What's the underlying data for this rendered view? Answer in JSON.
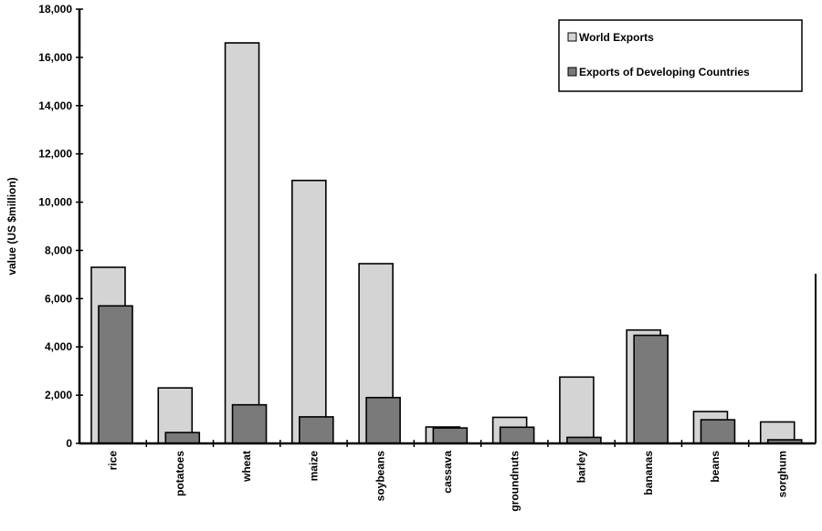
{
  "chart_data": {
    "type": "bar",
    "title": "",
    "xlabel": "",
    "ylabel": "value (US $million)",
    "ylim": [
      0,
      18000
    ],
    "yticks": [
      0,
      2000,
      4000,
      6000,
      8000,
      10000,
      12000,
      14000,
      16000,
      18000
    ],
    "ytick_labels": [
      "0",
      "2,000",
      "4,000",
      "6,000",
      "8,000",
      "10,000",
      "12,000",
      "14,000",
      "16,000",
      "18,000"
    ],
    "grid": false,
    "legend_position": "top-right",
    "categories": [
      "rice",
      "potatoes",
      "wheat",
      "maize",
      "soybeans",
      "cassava",
      "groundnuts",
      "barley",
      "bananas",
      "beans",
      "sorghum"
    ],
    "series": [
      {
        "name": "World Exports",
        "color": "#d4d4d4",
        "values": [
          7300,
          2300,
          16600,
          10900,
          7450,
          680,
          1080,
          2750,
          4700,
          1320,
          890
        ]
      },
      {
        "name": "Exports of Developing Countries",
        "color": "#7a7a7a",
        "values": [
          5700,
          450,
          1600,
          1100,
          1900,
          640,
          670,
          250,
          4480,
          980,
          150
        ]
      }
    ]
  }
}
